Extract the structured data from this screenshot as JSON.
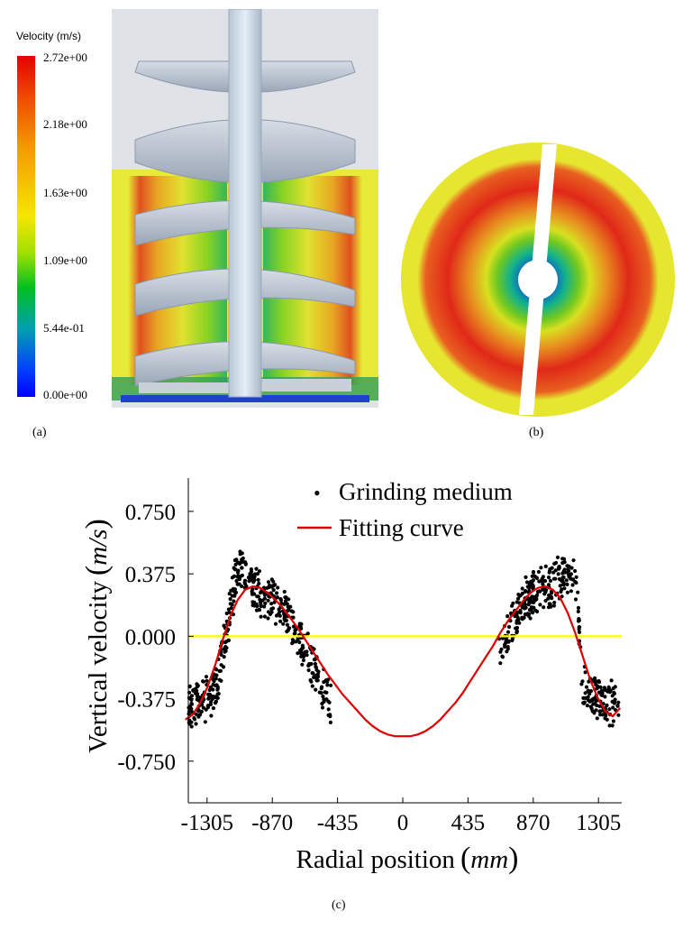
{
  "colorbar": {
    "title": "Velocity (m/s)",
    "ticks": [
      "2.72e+00",
      "2.18e+00",
      "1.63e+00",
      "1.09e+00",
      "5.44e-01",
      "0.00e+00"
    ]
  },
  "labels": {
    "a": "(a)",
    "b": "(b)",
    "c": "(c)"
  },
  "chart_data": {
    "type": "scatter",
    "xlabel": "Radial position",
    "xlabel_unit": "mm",
    "ylabel": "Vertical velocity",
    "ylabel_unit": "m/s",
    "xticks": [
      -1305,
      -870,
      -435,
      0,
      435,
      870,
      1305
    ],
    "xtick_labels": [
      "-1305",
      "-870",
      "-435",
      "0",
      "435",
      "870",
      "1305"
    ],
    "yticks": [
      0.75,
      0.375,
      0,
      -0.375,
      -0.75
    ],
    "ytick_labels": [
      "0.750",
      "0.375",
      "0.000",
      "-0.375",
      "-0.750"
    ],
    "xlim": [
      -1430,
      1460
    ],
    "ylim": [
      -1.0,
      0.95
    ],
    "legend": [
      "Grinding medium",
      "Fitting curve"
    ],
    "legend_position": "top-right",
    "zero_line_color": "#ffff00",
    "fit_color": "#e00000",
    "series": [
      {
        "name": "Fitting curve",
        "type": "line",
        "x": [
          -1450,
          -1400,
          -1350,
          -1300,
          -1250,
          -1200,
          -1150,
          -1100,
          -1050,
          -1000,
          -950,
          -900,
          -850,
          -800,
          -750,
          -700,
          -650,
          -600,
          -550,
          -500,
          -450,
          -400,
          -350,
          -300,
          -250,
          -200,
          -150,
          -100,
          -50,
          0,
          50,
          100,
          150,
          200,
          250,
          300,
          350,
          400,
          450,
          500,
          550,
          600,
          650,
          700,
          750,
          800,
          850,
          900,
          950,
          1000,
          1050,
          1100,
          1150,
          1200,
          1250,
          1300,
          1350,
          1400,
          1450
        ],
        "y": [
          -0.5,
          -0.47,
          -0.4,
          -0.3,
          -0.17,
          -0.02,
          0.12,
          0.22,
          0.28,
          0.3,
          0.29,
          0.26,
          0.22,
          0.17,
          0.11,
          0.05,
          -0.02,
          -0.09,
          -0.16,
          -0.23,
          -0.29,
          -0.35,
          -0.4,
          -0.45,
          -0.5,
          -0.54,
          -0.57,
          -0.59,
          -0.6,
          -0.6,
          -0.6,
          -0.59,
          -0.57,
          -0.54,
          -0.5,
          -0.45,
          -0.4,
          -0.34,
          -0.27,
          -0.2,
          -0.13,
          -0.06,
          0.02,
          0.09,
          0.15,
          0.21,
          0.26,
          0.29,
          0.3,
          0.28,
          0.23,
          0.14,
          0.02,
          -0.12,
          -0.26,
          -0.37,
          -0.45,
          -0.48,
          -0.43
        ]
      },
      {
        "name": "Grinding medium",
        "type": "scatter",
        "color": "#000000",
        "profile_x": [
          -1430,
          -1380,
          -1330,
          -1280,
          -1240,
          -1200,
          -1160,
          -1120,
          -1080,
          -1040,
          -1000,
          -960,
          -920,
          -880,
          -840,
          -800,
          -760,
          -720,
          -680,
          -640,
          -600,
          -560,
          -520,
          -480,
          640,
          680,
          720,
          760,
          800,
          840,
          880,
          920,
          960,
          1000,
          1040,
          1080,
          1120,
          1160,
          1200,
          1240,
          1280,
          1320,
          1360,
          1400,
          1440
        ],
        "profile_y": [
          -0.42,
          -0.4,
          -0.38,
          -0.36,
          -0.3,
          -0.1,
          0.1,
          0.32,
          0.42,
          0.34,
          0.3,
          0.26,
          0.24,
          0.22,
          0.2,
          0.18,
          0.12,
          0.06,
          -0.02,
          -0.1,
          -0.18,
          -0.26,
          -0.32,
          -0.38,
          -0.1,
          -0.04,
          0.06,
          0.14,
          0.2,
          0.24,
          0.26,
          0.28,
          0.3,
          0.32,
          0.34,
          0.38,
          0.4,
          0.3,
          -0.28,
          -0.34,
          -0.36,
          -0.38,
          -0.39,
          -0.4,
          -0.4
        ]
      }
    ]
  }
}
